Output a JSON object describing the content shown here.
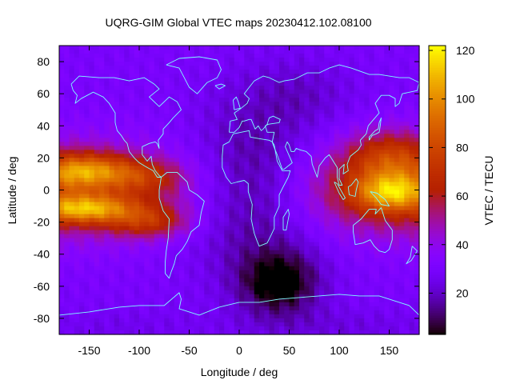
{
  "chart_data": {
    "type": "heatmap",
    "title": "UQRG-GIM Global VTEC maps 20230412.102.08100",
    "xlabel": "Longitude / deg",
    "ylabel": "Latitude / deg",
    "colorbar_label": "VTEC / TECU",
    "xlim": [
      -180,
      180
    ],
    "ylim": [
      -90,
      90
    ],
    "xticks": [
      -150,
      -100,
      -50,
      0,
      50,
      100,
      150
    ],
    "yticks": [
      -80,
      -60,
      -40,
      -20,
      0,
      20,
      40,
      60,
      80
    ],
    "colorbar_range": [
      3,
      122
    ],
    "colorbar_ticks": [
      20,
      40,
      60,
      80,
      100,
      120
    ],
    "colormap": "gnuplot",
    "coastline_color": "#7fffff",
    "features": [
      {
        "lon": -150,
        "lat": 10,
        "vtec": 112
      },
      {
        "lon": -150,
        "lat": -12,
        "vtec": 110
      },
      {
        "lon": -90,
        "lat": -20,
        "vtec": 88
      },
      {
        "lon": -90,
        "lat": 7,
        "vtec": 80
      },
      {
        "lon": 150,
        "lat": 20,
        "vtec": 95
      },
      {
        "lon": 150,
        "lat": -2,
        "vtec": 110
      },
      {
        "lon": 45,
        "lat": -58,
        "vtec": 5
      },
      {
        "lon": 20,
        "lat": 5,
        "vtec": 10
      },
      {
        "lon": 60,
        "lat": 65,
        "vtec": 18
      }
    ]
  }
}
